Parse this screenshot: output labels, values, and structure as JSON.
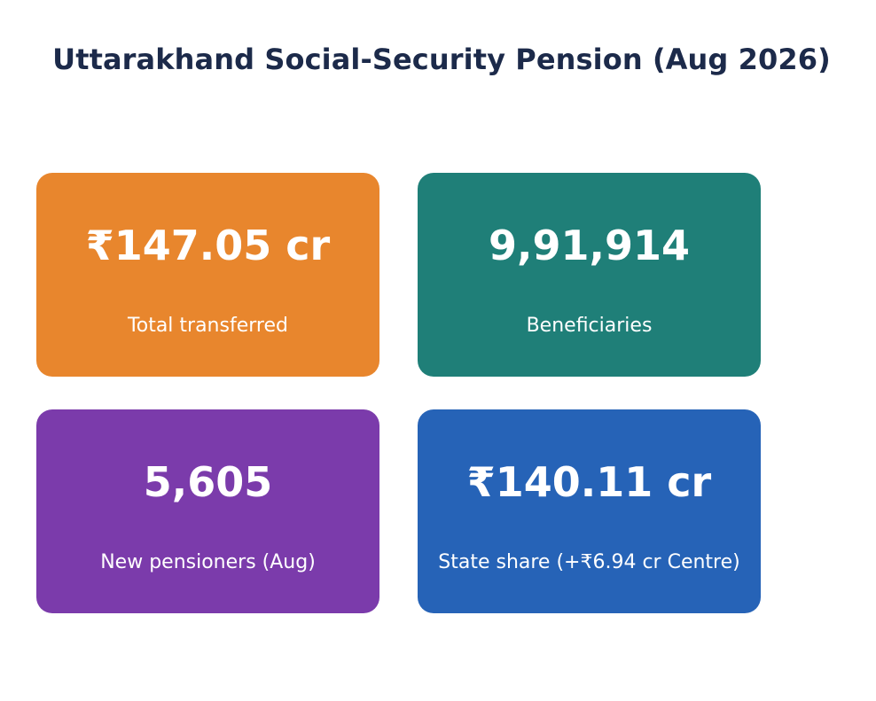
{
  "chart_data": {
    "type": "table",
    "title": "Uttarakhand Social-Security Pension (Aug 2026)",
    "cards": [
      {
        "value": "₹147.05 cr",
        "label": "Total transferred",
        "color": "#e8862d"
      },
      {
        "value": "9,91,914",
        "label": "Beneficiaries",
        "color": "#1f7f78"
      },
      {
        "value": "5,605",
        "label": "New pensioners (Aug)",
        "color": "#7b3bab"
      },
      {
        "value": "₹140.11 cr",
        "label": "State share (+₹6.94 cr Centre)",
        "color": "#2663b7"
      }
    ]
  }
}
